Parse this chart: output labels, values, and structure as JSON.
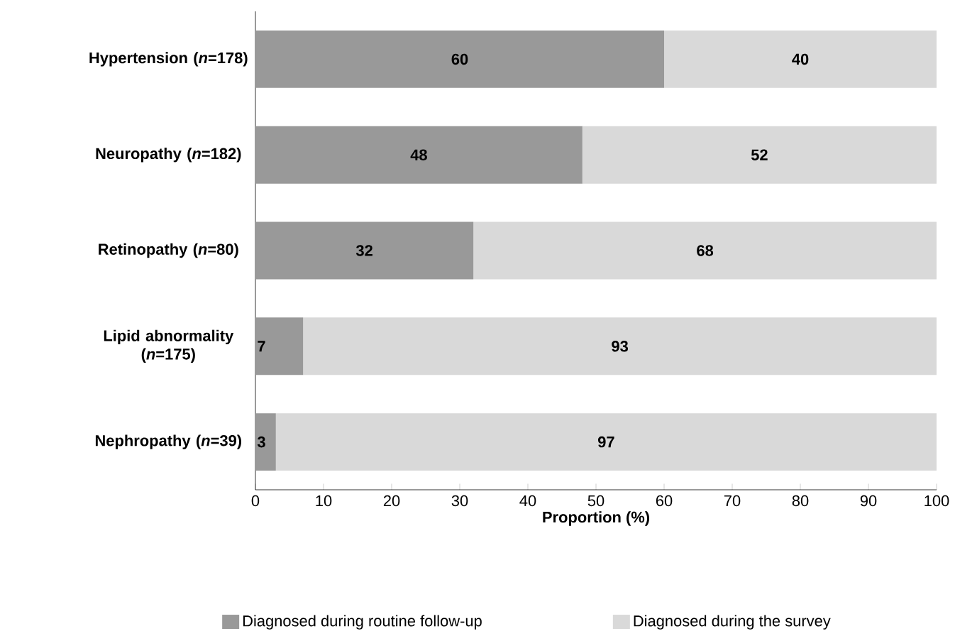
{
  "chart_data": {
    "type": "bar",
    "orientation": "horizontal",
    "stacked": true,
    "data_labels": true,
    "categories": [
      "Hypertension (*n*=178)",
      "Neuropathy (*n*=182)",
      "Retinopathy (*n*=80)",
      "Lipid abnormality (*n*=175)",
      "Nephropathy (*n*=39)"
    ],
    "series": [
      {
        "name": "Diagnosed during routine follow-up",
        "color": "#999999",
        "values": [
          60,
          48,
          32,
          7,
          3
        ]
      },
      {
        "name": "Diagnosed during the survey",
        "color": "#d9d9d9",
        "values": [
          40,
          52,
          68,
          93,
          97
        ]
      }
    ],
    "xlabel": "Proportion (%)",
    "xlim": [
      0,
      100
    ],
    "xticks": [
      0,
      10,
      20,
      30,
      40,
      50,
      60,
      70,
      80,
      90,
      100
    ],
    "grid": false,
    "legend": "bottom"
  }
}
